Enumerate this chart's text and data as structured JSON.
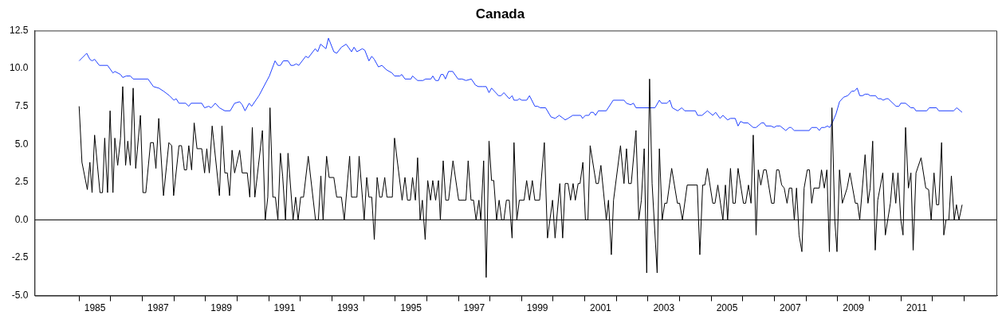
{
  "chart_data": {
    "type": "line",
    "title": "Canada",
    "xlim": [
      1983.59,
      2014.05
    ],
    "xticks": [
      {
        "value": 1985,
        "label": null
      },
      {
        "value": 1985.5,
        "label": "1985"
      },
      {
        "value": 1986,
        "label": null
      },
      {
        "value": 1987,
        "label": null
      },
      {
        "value": 1987.5,
        "label": "1987"
      },
      {
        "value": 1988,
        "label": null
      },
      {
        "value": 1989,
        "label": null
      },
      {
        "value": 1989.5,
        "label": "1989"
      },
      {
        "value": 1990,
        "label": null
      },
      {
        "value": 1991,
        "label": null
      },
      {
        "value": 1991.5,
        "label": "1991"
      },
      {
        "value": 1992,
        "label": null
      },
      {
        "value": 1993,
        "label": null
      },
      {
        "value": 1993.5,
        "label": "1993"
      },
      {
        "value": 1994,
        "label": null
      },
      {
        "value": 1995,
        "label": null
      },
      {
        "value": 1995.5,
        "label": "1995"
      },
      {
        "value": 1996,
        "label": null
      },
      {
        "value": 1997,
        "label": null
      },
      {
        "value": 1997.5,
        "label": "1997"
      },
      {
        "value": 1998,
        "label": null
      },
      {
        "value": 1999,
        "label": null
      },
      {
        "value": 1999.5,
        "label": "1999"
      },
      {
        "value": 2000,
        "label": null
      },
      {
        "value": 2001,
        "label": null
      },
      {
        "value": 2001.5,
        "label": "2001"
      },
      {
        "value": 2002,
        "label": null
      },
      {
        "value": 2003,
        "label": null
      },
      {
        "value": 2003.5,
        "label": "2003"
      },
      {
        "value": 2004,
        "label": null
      },
      {
        "value": 2005,
        "label": null
      },
      {
        "value": 2005.5,
        "label": "2005"
      },
      {
        "value": 2006,
        "label": null
      },
      {
        "value": 2007,
        "label": null
      },
      {
        "value": 2007.5,
        "label": "2007"
      },
      {
        "value": 2008,
        "label": null
      },
      {
        "value": 2009,
        "label": null
      },
      {
        "value": 2009.5,
        "label": "2009"
      },
      {
        "value": 2010,
        "label": null
      },
      {
        "value": 2011,
        "label": null
      },
      {
        "value": 2011.5,
        "label": "2011"
      },
      {
        "value": 2012,
        "label": null
      },
      {
        "value": 2013,
        "label": null
      }
    ],
    "ylim": [
      -5,
      12.5
    ],
    "yticks": [
      {
        "value": -5,
        "label": "-5.0"
      },
      {
        "value": -2.5,
        "label": "-2.5"
      },
      {
        "value": 0,
        "label": "0.0"
      },
      {
        "value": 2.5,
        "label": "2.5"
      },
      {
        "value": 5,
        "label": "5.0"
      },
      {
        "value": 7.5,
        "label": "7.5"
      },
      {
        "value": 10,
        "label": "10.0"
      },
      {
        "value": 12.5,
        "label": "12.5"
      }
    ],
    "ref_lines": [
      {
        "axis": "y",
        "value": 0,
        "color": "#000000"
      }
    ],
    "series": [
      {
        "color": "#000000",
        "x": [
          1985.0,
          1985.09,
          1985.26,
          1985.34,
          1985.41,
          1985.49,
          1985.66,
          1985.74,
          1985.81,
          1985.9,
          1985.98,
          1986.07,
          1986.13,
          1986.22,
          1986.31,
          1986.38,
          1986.47,
          1986.54,
          1986.62,
          1986.71,
          1986.79,
          1986.94,
          1987.02,
          1987.11,
          1987.26,
          1987.35,
          1987.43,
          1987.52,
          1987.67,
          1987.84,
          1987.93,
          1987.99,
          1988.16,
          1988.24,
          1988.33,
          1988.4,
          1988.47,
          1988.56,
          1988.64,
          1988.73,
          1988.88,
          1988.97,
          1989.04,
          1989.12,
          1989.21,
          1989.44,
          1989.52,
          1989.61,
          1989.69,
          1989.76,
          1989.84,
          1989.92,
          1990.08,
          1990.16,
          1990.32,
          1990.4,
          1990.48,
          1990.56,
          1990.8,
          1990.89,
          1990.97,
          1991.04,
          1991.13,
          1991.21,
          1991.29,
          1991.37,
          1991.44,
          1991.53,
          1991.61,
          1991.77,
          1991.85,
          1991.93,
          1992.01,
          1992.1,
          1992.25,
          1992.48,
          1992.57,
          1992.65,
          1992.72,
          1992.83,
          1992.91,
          1993.06,
          1993.15,
          1993.3,
          1993.39,
          1993.56,
          1993.62,
          1993.79,
          1993.86,
          1994.02,
          1994.1,
          1994.17,
          1994.26,
          1994.34,
          1994.43,
          1994.51,
          1994.58,
          1994.67,
          1994.74,
          1994.91,
          1994.98,
          1995.22,
          1995.31,
          1995.39,
          1995.48,
          1995.55,
          1995.64,
          1995.71,
          1995.79,
          1995.86,
          1995.95,
          1996.03,
          1996.12,
          1996.19,
          1996.28,
          1996.37,
          1996.43,
          1996.52,
          1996.6,
          1996.69,
          1996.83,
          1997.01,
          1997.24,
          1997.31,
          1997.4,
          1997.48,
          1997.56,
          1997.65,
          1997.71,
          1997.8,
          1997.88,
          1997.97,
          1998.05,
          1998.12,
          1998.21,
          1998.29,
          1998.37,
          1998.44,
          1998.52,
          1998.61,
          1998.7,
          1998.76,
          1998.85,
          1998.93,
          1999.08,
          1999.16,
          1999.25,
          1999.34,
          1999.42,
          1999.57,
          1999.72,
          1999.82,
          1999.98,
          2000.06,
          2000.21,
          2000.3,
          2000.38,
          2000.47,
          2000.55,
          2000.63,
          2000.7,
          2000.79,
          2000.85,
          2000.94,
          2001.02,
          2001.1,
          2001.17,
          2001.36,
          2001.43,
          2001.51,
          2001.68,
          2001.75,
          2001.84,
          2001.91,
          2002.13,
          2002.24,
          2002.32,
          2002.39,
          2002.47,
          2002.62,
          2002.71,
          2002.79,
          2002.88,
          2002.96,
          2003.05,
          2003.13,
          2003.29,
          2003.36,
          2003.45,
          2003.53,
          2003.6,
          2003.75,
          2003.93,
          2004.0,
          2004.09,
          2004.24,
          2004.56,
          2004.64,
          2004.73,
          2004.8,
          2004.88,
          2005.05,
          2005.12,
          2005.21,
          2005.37,
          2005.45,
          2005.52,
          2005.61,
          2005.69,
          2005.76,
          2005.85,
          2006.02,
          2006.09,
          2006.18,
          2006.26,
          2006.33,
          2006.42,
          2006.49,
          2006.57,
          2006.66,
          2006.74,
          2006.91,
          2006.99,
          2007.07,
          2007.14,
          2007.23,
          2007.31,
          2007.4,
          2007.47,
          2007.55,
          2007.63,
          2007.7,
          2007.78,
          2007.87,
          2007.94,
          2008.04,
          2008.11,
          2008.18,
          2008.25,
          2008.42,
          2008.49,
          2008.58,
          2008.66,
          2008.74,
          2008.82,
          2008.91,
          2008.98,
          2009.06,
          2009.15,
          2009.3,
          2009.39,
          2009.56,
          2009.63,
          2009.7,
          2009.87,
          2009.96,
          2010.03,
          2010.11,
          2010.19,
          2010.27,
          2010.43,
          2010.51,
          2010.67,
          2010.75,
          2010.84,
          2010.91,
          2011.0,
          2011.07,
          2011.15,
          2011.24,
          2011.32,
          2011.39,
          2011.48,
          2011.64,
          2011.79,
          2011.88,
          2011.96,
          2012.05,
          2012.13,
          2012.2,
          2012.29,
          2012.36,
          2012.43,
          2012.52,
          2012.6,
          2012.69,
          2012.76,
          2012.84,
          2012.94
        ],
        "values": [
          7.5,
          3.8,
          2.0,
          3.8,
          1.8,
          5.6,
          1.8,
          1.8,
          5.4,
          1.8,
          7.2,
          1.8,
          5.4,
          3.6,
          5.4,
          8.8,
          3.6,
          5.2,
          3.6,
          8.7,
          3.4,
          6.9,
          1.8,
          1.8,
          5.1,
          5.1,
          3.4,
          6.7,
          1.6,
          5.1,
          4.9,
          1.6,
          4.9,
          4.9,
          3.3,
          3.3,
          4.9,
          3.3,
          6.4,
          4.7,
          4.7,
          3.1,
          4.7,
          3.1,
          6.2,
          1.6,
          6.2,
          3.1,
          3.1,
          1.6,
          4.6,
          3.1,
          4.6,
          3.1,
          3.1,
          1.5,
          6.1,
          1.5,
          5.9,
          0,
          1.5,
          7.4,
          1.5,
          1.5,
          0,
          4.4,
          2.9,
          0,
          4.4,
          0,
          1.5,
          0,
          1.5,
          1.5,
          4.2,
          0,
          0,
          2.9,
          0,
          4.2,
          2.8,
          2.8,
          1.5,
          1.5,
          0,
          4.2,
          1.5,
          1.5,
          4.2,
          0,
          2.8,
          1.5,
          1.5,
          -1.3,
          2.8,
          1.5,
          1.5,
          2.8,
          1.5,
          1.5,
          5.4,
          1.3,
          2.8,
          1.3,
          1.3,
          2.8,
          1.3,
          4.1,
          0,
          1.3,
          -1.3,
          2.6,
          1.3,
          2.6,
          1.3,
          2.6,
          0,
          3.9,
          1.3,
          1.3,
          3.9,
          1.3,
          1.3,
          3.9,
          1.3,
          1.3,
          0,
          1.3,
          0,
          3.9,
          -3.8,
          5.2,
          2.6,
          2.6,
          0,
          1.3,
          0,
          0,
          1.3,
          1.3,
          -1.2,
          5.1,
          0,
          1.3,
          1.3,
          2.6,
          1.3,
          2.6,
          1.3,
          1.3,
          5.1,
          -1.2,
          1.3,
          -1.2,
          2.4,
          -1.2,
          2.4,
          2.4,
          1.3,
          2.4,
          1.3,
          2.4,
          2.4,
          3.8,
          0,
          0,
          4.9,
          2.4,
          2.4,
          3.6,
          0,
          1.3,
          -2.3,
          1.3,
          4.9,
          2.4,
          4.7,
          2.4,
          2.4,
          5.9,
          0,
          1.3,
          4.7,
          -3.5,
          9.3,
          2.4,
          -3.5,
          4.7,
          0,
          1.1,
          1.1,
          3.4,
          1.1,
          1.1,
          0,
          2.3,
          2.3,
          -2.3,
          2.3,
          2.3,
          3.4,
          1.1,
          1.1,
          2.3,
          0,
          2.3,
          0,
          3.4,
          1.1,
          1.1,
          3.4,
          1.1,
          1.1,
          2.3,
          1.1,
          5.6,
          -1.0,
          3.3,
          2.3,
          3.3,
          3.3,
          1.1,
          1.1,
          3.3,
          3.3,
          2.3,
          2.1,
          1.1,
          2.1,
          2.1,
          0,
          2.1,
          -1.0,
          -2.1,
          2.1,
          3.3,
          3.3,
          1.1,
          2.1,
          2.1,
          3.3,
          2.1,
          3.3,
          -2.1,
          7.4,
          0,
          -2.1,
          3.3,
          1.1,
          2.1,
          3.1,
          1.1,
          1.1,
          0,
          4.3,
          1.1,
          2.1,
          5.2,
          -2.0,
          1.3,
          3.1,
          -1.0,
          1.1,
          3.1,
          1.1,
          3.1,
          0,
          -1.0,
          6.1,
          2.1,
          3.1,
          -2.0,
          3.1,
          4.1,
          2.1,
          2.0,
          0,
          3.1,
          1.0,
          1.0,
          5.1,
          -1.0,
          0,
          0,
          2.9,
          0,
          1.0,
          0,
          1.0
        ]
      },
      {
        "color": "#2040ff",
        "x": [
          1985.0,
          1985.24,
          1985.34,
          1985.41,
          1985.49,
          1985.64,
          1985.9,
          1986.07,
          1986.13,
          1986.31,
          1986.38,
          1986.49,
          1986.62,
          1986.71,
          1987.18,
          1987.35,
          1987.52,
          1987.67,
          1987.86,
          1988.0,
          1988.07,
          1988.16,
          1988.37,
          1988.47,
          1988.54,
          1988.88,
          1988.97,
          1989.1,
          1989.18,
          1989.31,
          1989.44,
          1989.61,
          1989.78,
          1989.92,
          1990.08,
          1990.16,
          1990.25,
          1990.38,
          1990.46,
          1990.69,
          1991.02,
          1991.2,
          1991.29,
          1991.37,
          1991.46,
          1991.61,
          1991.7,
          1991.78,
          1991.87,
          1991.95,
          1992.17,
          1992.25,
          1992.47,
          1992.55,
          1992.64,
          1992.81,
          1992.89,
          1993.06,
          1993.15,
          1993.3,
          1993.45,
          1993.62,
          1993.7,
          1993.79,
          1993.96,
          1994.04,
          1994.17,
          1994.26,
          1994.34,
          1994.47,
          1994.58,
          1994.73,
          1994.9,
          1994.98,
          1995.15,
          1995.21,
          1995.31,
          1995.5,
          1995.55,
          1995.71,
          1995.88,
          1995.96,
          1996.13,
          1996.19,
          1996.28,
          1996.37,
          1996.45,
          1996.52,
          1996.59,
          1996.69,
          1996.82,
          1996.99,
          1997.12,
          1997.24,
          1997.41,
          1997.54,
          1997.63,
          1997.76,
          1997.88,
          1997.97,
          1998.05,
          1998.27,
          1998.35,
          1998.44,
          1998.61,
          1998.7,
          1998.76,
          1998.87,
          1998.93,
          1999.01,
          1999.16,
          1999.25,
          1999.42,
          1999.51,
          1999.59,
          1999.76,
          1999.93,
          2000.06,
          2000.19,
          2000.32,
          2000.38,
          2000.47,
          2000.62,
          2000.87,
          2000.93,
          2001.02,
          2001.13,
          2001.19,
          2001.27,
          2001.34,
          2001.43,
          2001.68,
          2001.9,
          2002.24,
          2002.32,
          2002.45,
          2002.54,
          2002.62,
          2003.22,
          2003.36,
          2003.43,
          2003.6,
          2003.69,
          2003.77,
          2003.94,
          2004.07,
          2004.16,
          2004.5,
          2004.57,
          2004.71,
          2004.88,
          2005.05,
          2005.14,
          2005.28,
          2005.37,
          2005.52,
          2005.61,
          2005.76,
          2005.85,
          2005.93,
          2006.03,
          2006.16,
          2006.33,
          2006.42,
          2006.59,
          2006.67,
          2006.73,
          2006.89,
          2006.99,
          2007.07,
          2007.18,
          2007.36,
          2007.47,
          2007.53,
          2007.63,
          2008.1,
          2008.18,
          2008.34,
          2008.42,
          2008.49,
          2008.59,
          2008.68,
          2008.75,
          2008.85,
          2008.95,
          2009.06,
          2009.19,
          2009.32,
          2009.45,
          2009.53,
          2009.62,
          2009.7,
          2009.79,
          2009.87,
          2009.96,
          2010.03,
          2010.2,
          2010.28,
          2010.37,
          2010.44,
          2010.54,
          2010.6,
          2010.85,
          2010.94,
          2011.0,
          2011.15,
          2011.32,
          2011.41,
          2011.48,
          2011.82,
          2011.9,
          2012.13,
          2012.2,
          2012.67,
          2012.77,
          2012.94
        ],
        "values": [
          10.5,
          11.0,
          10.6,
          10.5,
          10.6,
          10.2,
          10.2,
          9.7,
          9.8,
          9.6,
          9.4,
          9.5,
          9.5,
          9.3,
          9.3,
          8.8,
          8.7,
          8.5,
          8.2,
          7.9,
          8.0,
          7.7,
          7.7,
          7.5,
          7.7,
          7.7,
          7.4,
          7.5,
          7.4,
          7.7,
          7.4,
          7.2,
          7.2,
          7.7,
          7.8,
          7.6,
          7.2,
          7.7,
          7.5,
          8.2,
          9.5,
          10.5,
          10.2,
          10.2,
          10.5,
          10.5,
          10.2,
          10.2,
          10.3,
          10.2,
          10.8,
          10.7,
          11.3,
          11.1,
          11.6,
          11.3,
          12.0,
          11.1,
          11.0,
          11.4,
          11.6,
          11.1,
          11.4,
          11.1,
          11.3,
          11.2,
          10.5,
          10.8,
          10.6,
          10.1,
          10.2,
          9.9,
          9.7,
          9.5,
          9.5,
          9.6,
          9.3,
          9.3,
          9.5,
          9.2,
          9.2,
          9.3,
          9.3,
          9.5,
          9.2,
          9.2,
          9.6,
          9.6,
          9.3,
          9.8,
          9.8,
          9.3,
          9.3,
          9.2,
          9.3,
          8.9,
          8.8,
          8.8,
          8.8,
          8.4,
          8.7,
          8.2,
          8.2,
          8.4,
          8.0,
          8.2,
          7.9,
          7.9,
          8.0,
          7.9,
          7.9,
          8.2,
          7.5,
          7.5,
          7.4,
          7.4,
          6.8,
          6.7,
          6.9,
          6.7,
          6.6,
          6.7,
          6.9,
          6.9,
          6.7,
          6.9,
          6.9,
          7.1,
          7.1,
          6.9,
          7.2,
          7.2,
          7.9,
          7.9,
          7.7,
          7.6,
          7.7,
          7.4,
          7.4,
          7.9,
          7.7,
          7.7,
          7.9,
          7.4,
          7.2,
          7.4,
          7.2,
          7.2,
          6.9,
          6.9,
          7.2,
          6.9,
          7.1,
          6.7,
          6.9,
          6.6,
          6.7,
          6.7,
          6.2,
          6.5,
          6.4,
          6.4,
          6.1,
          6.1,
          6.4,
          6.4,
          6.2,
          6.2,
          6.1,
          6.2,
          6.2,
          5.9,
          6.1,
          6.1,
          5.9,
          5.9,
          6.1,
          6.1,
          5.9,
          6.1,
          6.1,
          6.2,
          6.1,
          6.5,
          7.0,
          7.8,
          8.1,
          8.2,
          8.5,
          8.5,
          8.7,
          8.2,
          8.2,
          8.3,
          8.3,
          8.2,
          8.2,
          8.0,
          8.0,
          7.9,
          8.0,
          8.0,
          7.5,
          7.5,
          7.7,
          7.7,
          7.4,
          7.4,
          7.2,
          7.2,
          7.4,
          7.4,
          7.2,
          7.2,
          7.4,
          7.1
        ]
      }
    ]
  }
}
